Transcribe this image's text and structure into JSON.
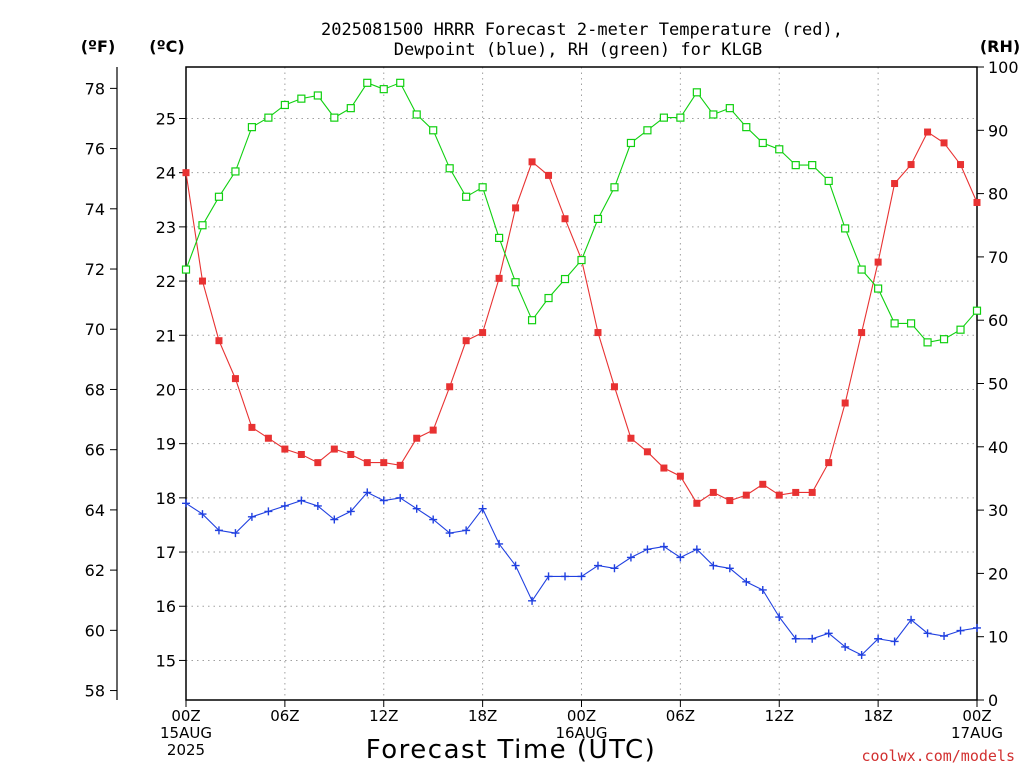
{
  "title_lines": [
    "2025081500 HRRR Forecast 2-meter Temperature (red),",
    "Dewpoint (blue), RH (green) for KLGB"
  ],
  "units": {
    "fahrenheit": "(ºF)",
    "celsius": "(ºC)",
    "rh": "(RH)"
  },
  "xlabel": "Forecast Time (UTC)",
  "credit": "coolwx.com/models",
  "colors": {
    "temperature": "#e83232",
    "dewpoint": "#2040e0",
    "rh": "#10d010"
  },
  "chart_data": {
    "type": "line",
    "title": "2025081500 HRRR Forecast 2-meter Temperature (red), Dewpoint (blue), RH (green) for KLGB",
    "xlabel": "Forecast Time (UTC)",
    "x": [
      0,
      1,
      2,
      3,
      4,
      5,
      6,
      7,
      8,
      9,
      10,
      11,
      12,
      13,
      14,
      15,
      16,
      17,
      18,
      19,
      20,
      21,
      22,
      23,
      24,
      25,
      26,
      27,
      28,
      29,
      30,
      31,
      32,
      33,
      34,
      35,
      36,
      37,
      38,
      39,
      40,
      41,
      42,
      43,
      44,
      45,
      46,
      47,
      48
    ],
    "x_unit": "forecast hour",
    "xlim": [
      0,
      48
    ],
    "x_ticks": [
      {
        "x": 0,
        "lines": [
          "00Z",
          "15AUG",
          "2025"
        ]
      },
      {
        "x": 6,
        "lines": [
          "06Z"
        ]
      },
      {
        "x": 12,
        "lines": [
          "12Z"
        ]
      },
      {
        "x": 18,
        "lines": [
          "18Z"
        ]
      },
      {
        "x": 24,
        "lines": [
          "00Z",
          "16AUG"
        ]
      },
      {
        "x": 30,
        "lines": [
          "06Z"
        ]
      },
      {
        "x": 36,
        "lines": [
          "12Z"
        ]
      },
      {
        "x": 42,
        "lines": [
          "18Z"
        ]
      },
      {
        "x": 48,
        "lines": [
          "00Z",
          "17AUG"
        ]
      }
    ],
    "y_left_celsius": {
      "label": "(ºC)",
      "range": [
        14.27,
        25.95
      ],
      "ticks": [
        15,
        16,
        17,
        18,
        19,
        20,
        21,
        22,
        23,
        24,
        25
      ]
    },
    "y_left_fahrenheit": {
      "label": "(ºF)",
      "ticks": [
        58,
        60,
        62,
        64,
        66,
        68,
        70,
        72,
        74,
        76,
        78
      ]
    },
    "y_right_rh": {
      "label": "(RH)",
      "range": [
        0,
        100
      ],
      "ticks": [
        0,
        10,
        20,
        30,
        40,
        50,
        60,
        70,
        80,
        90,
        100
      ]
    },
    "grid": true,
    "series": [
      {
        "name": "Temperature",
        "axis": "celsius",
        "marker": "filled-square",
        "values": [
          24.0,
          22.0,
          20.9,
          20.2,
          19.3,
          19.1,
          18.9,
          18.8,
          18.65,
          18.9,
          18.8,
          18.65,
          18.65,
          18.6,
          19.1,
          19.25,
          20.05,
          20.9,
          21.05,
          22.05,
          23.35,
          24.2,
          23.95,
          23.15,
          22.4,
          21.05,
          20.05,
          19.1,
          18.85,
          18.55,
          18.4,
          17.9,
          18.1,
          17.95,
          18.05,
          18.25,
          18.05,
          18.1,
          18.1,
          18.65,
          19.75,
          21.05,
          22.35,
          23.8,
          24.15,
          24.75,
          24.55,
          24.15,
          23.45
        ]
      },
      {
        "name": "Dewpoint",
        "axis": "celsius",
        "marker": "plus",
        "values": [
          17.9,
          17.7,
          17.4,
          17.35,
          17.65,
          17.75,
          17.85,
          17.95,
          17.85,
          17.6,
          17.75,
          18.1,
          17.95,
          18.0,
          17.8,
          17.6,
          17.35,
          17.4,
          17.8,
          17.15,
          16.75,
          16.1,
          16.55,
          16.55,
          16.55,
          16.75,
          16.7,
          16.9,
          17.05,
          17.1,
          16.9,
          17.05,
          16.75,
          16.7,
          16.45,
          16.3,
          15.8,
          15.4,
          15.4,
          15.5,
          15.25,
          15.1,
          15.4,
          15.35,
          15.75,
          15.5,
          15.45,
          15.55,
          15.6
        ]
      },
      {
        "name": "RH",
        "axis": "rh",
        "marker": "open-square",
        "values": [
          68,
          75,
          79.5,
          83.5,
          90.5,
          92,
          94,
          95,
          95.5,
          92,
          93.5,
          97.5,
          96.5,
          97.5,
          92.5,
          90,
          84,
          79.5,
          81,
          73,
          66,
          60,
          63.5,
          66.5,
          69.5,
          76,
          81,
          88,
          90,
          92,
          92,
          96,
          92.5,
          93.5,
          90.5,
          88,
          87,
          84.5,
          84.5,
          82,
          74.5,
          68,
          65,
          59.5,
          59.5,
          56.5,
          57,
          58.5,
          61.5
        ]
      }
    ]
  }
}
